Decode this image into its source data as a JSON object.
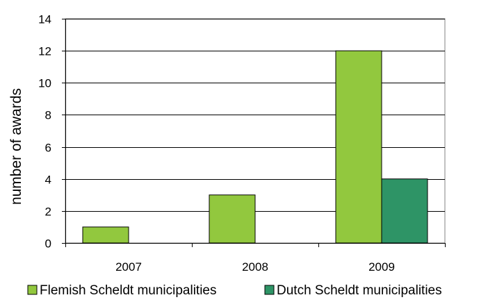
{
  "chart_data": {
    "type": "bar",
    "title": "",
    "xlabel": "",
    "ylabel": "number of awards",
    "categories": [
      "2007",
      "2008",
      "2009"
    ],
    "ylim": [
      0,
      14
    ],
    "yticks": [
      "0",
      "2",
      "4",
      "6",
      "8",
      "10",
      "12",
      "14"
    ],
    "grid": true,
    "legend_position": "bottom",
    "series": [
      {
        "name": "Flemish Scheldt municipalities",
        "values": [
          1,
          3,
          12
        ],
        "color": "#92c83e"
      },
      {
        "name": "Dutch Scheldt municipalities",
        "values": [
          0,
          0,
          4
        ],
        "color": "#2e9466"
      }
    ]
  }
}
